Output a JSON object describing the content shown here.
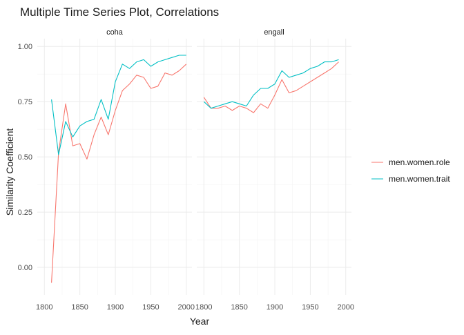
{
  "chart_data": {
    "type": "line",
    "title": "Multiple Time Series Plot, Correlations",
    "xlabel": "Year",
    "ylabel": "Similarity Coefficient",
    "xlim": [
      1790,
      2008
    ],
    "ylim": [
      -0.125,
      1.035
    ],
    "x_ticks": [
      1800,
      1850,
      1900,
      1950,
      2000
    ],
    "x_tick_labels": [
      "1800",
      "1850",
      "1900",
      "1950",
      "2000"
    ],
    "y_ticks": [
      0,
      0.25,
      0.5,
      0.75,
      1
    ],
    "y_tick_labels": [
      "0.00",
      "0.25",
      "0.50",
      "0.75",
      "1.00"
    ],
    "grid": true,
    "legend_position": "right",
    "panels": [
      {
        "label": "coha",
        "series": [
          {
            "name": "men.women.role",
            "color": "#F8766D",
            "x": [
              1810,
              1820,
              1830,
              1840,
              1850,
              1860,
              1870,
              1880,
              1890,
              1900,
              1910,
              1920,
              1930,
              1940,
              1950,
              1960,
              1970,
              1980,
              1990,
              2000
            ],
            "y": [
              -0.07,
              0.52,
              0.74,
              0.55,
              0.56,
              0.49,
              0.6,
              0.68,
              0.6,
              0.71,
              0.8,
              0.83,
              0.87,
              0.86,
              0.81,
              0.82,
              0.88,
              0.87,
              0.89,
              0.92
            ]
          },
          {
            "name": "men.women.trait",
            "color": "#00BFC4",
            "x": [
              1810,
              1820,
              1830,
              1840,
              1850,
              1860,
              1870,
              1880,
              1890,
              1900,
              1910,
              1920,
              1930,
              1940,
              1950,
              1960,
              1970,
              1980,
              1990,
              2000
            ],
            "y": [
              0.76,
              0.51,
              0.66,
              0.59,
              0.64,
              0.66,
              0.67,
              0.76,
              0.67,
              0.84,
              0.92,
              0.9,
              0.93,
              0.94,
              0.91,
              0.93,
              0.94,
              0.95,
              0.96,
              0.96
            ]
          }
        ]
      },
      {
        "label": "engall",
        "series": [
          {
            "name": "men.women.role",
            "color": "#F8766D",
            "x": [
              1800,
              1810,
              1820,
              1830,
              1840,
              1850,
              1860,
              1870,
              1880,
              1890,
              1900,
              1910,
              1920,
              1930,
              1940,
              1950,
              1960,
              1970,
              1980,
              1990
            ],
            "y": [
              0.77,
              0.72,
              0.72,
              0.73,
              0.71,
              0.73,
              0.72,
              0.7,
              0.74,
              0.72,
              0.78,
              0.85,
              0.79,
              0.8,
              0.82,
              0.84,
              0.86,
              0.88,
              0.9,
              0.93
            ]
          },
          {
            "name": "men.women.trait",
            "color": "#00BFC4",
            "x": [
              1800,
              1810,
              1820,
              1830,
              1840,
              1850,
              1860,
              1870,
              1880,
              1890,
              1900,
              1910,
              1920,
              1930,
              1940,
              1950,
              1960,
              1970,
              1980,
              1990
            ],
            "y": [
              0.75,
              0.72,
              0.73,
              0.74,
              0.75,
              0.74,
              0.73,
              0.78,
              0.81,
              0.81,
              0.83,
              0.89,
              0.86,
              0.87,
              0.88,
              0.9,
              0.91,
              0.93,
              0.93,
              0.94
            ]
          }
        ]
      }
    ],
    "legend": [
      {
        "name": "men.women.role",
        "color": "#F8766D"
      },
      {
        "name": "men.women.trait",
        "color": "#00BFC4"
      }
    ]
  }
}
